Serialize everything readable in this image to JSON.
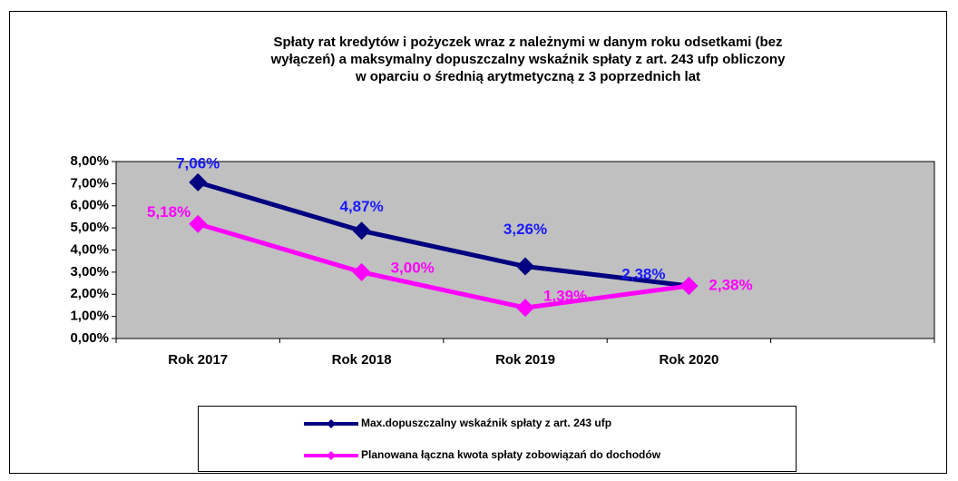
{
  "chart_data": {
    "type": "line",
    "title": [
      "Spłaty rat kredytów i pożyczek wraz z należnymi w danym roku odsetkami (bez",
      "wyłączeń) a maksymalny dopuszczalny wskaźnik spłaty z art. 243 ufp obliczony",
      "w oparciu o średnią arytmetyczną z 3 poprzednich lat"
    ],
    "categories": [
      "Rok 2017",
      "Rok 2018",
      "Rok 2019",
      "Rok 2020",
      null
    ],
    "series": [
      {
        "name": "Max.dopuszczalny wskaźnik spłaty z art. 243 ufp",
        "color": "#000080",
        "label_color": "#1a1aff",
        "values": [
          7.06,
          4.87,
          3.26,
          2.38,
          null
        ],
        "value_labels": [
          "7,06%",
          "4,87%",
          "3,26%",
          "2,38%",
          null
        ]
      },
      {
        "name": "Planowana łączna kwota spłaty zobowiązań do dochodów",
        "color": "#ff00ff",
        "label_color": "#ff00ff",
        "values": [
          5.18,
          3.0,
          1.39,
          2.38,
          null
        ],
        "value_labels": [
          "5,18%",
          "3,00%",
          "1,39%",
          "2,38%",
          null
        ]
      }
    ],
    "ylim": [
      0,
      8
    ],
    "yticks": [
      {
        "value": 0,
        "label": "0,00%"
      },
      {
        "value": 1,
        "label": "1,00%"
      },
      {
        "value": 2,
        "label": "2,00%"
      },
      {
        "value": 3,
        "label": "3,00%"
      },
      {
        "value": 4,
        "label": "4,00%"
      },
      {
        "value": 5,
        "label": "5,00%"
      },
      {
        "value": 6,
        "label": "6,00%"
      },
      {
        "value": 7,
        "label": "7,00%"
      },
      {
        "value": 8,
        "label": "8,00%"
      }
    ],
    "grid": false,
    "plot_background": "#c0c0c0"
  }
}
